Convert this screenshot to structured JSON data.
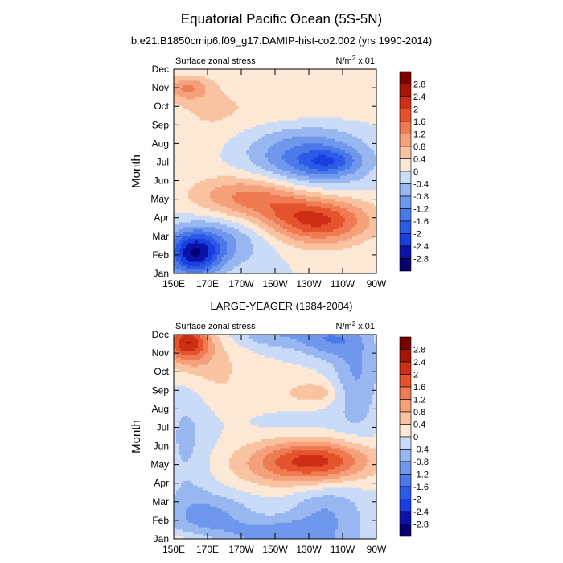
{
  "figure": {
    "title": "Equatorial Pacific Ocean (5S-5N)"
  },
  "chart_data": [
    {
      "type": "heatmap",
      "title": "b.e21.B1850cmip6.f09_g17.DAMIP-hist-co2.002 (yrs 1990-2014)",
      "left_label": "Surface zonal stress",
      "units_label": {
        "base": "N/m",
        "sup": "2",
        "suffix": " x.01"
      },
      "xlabel": "",
      "ylabel": "Month",
      "xlim": [
        150,
        270
      ],
      "x_tick_values": [
        150,
        170,
        190,
        210,
        230,
        250,
        270
      ],
      "x_tick_labels": [
        "150E",
        "170E",
        "170W",
        "150W",
        "130W",
        "110W",
        "90W"
      ],
      "y_tick_labels": [
        "Jan",
        "Feb",
        "Mar",
        "Apr",
        "May",
        "Jun",
        "Jul",
        "Aug",
        "Sep",
        "Oct",
        "Nov",
        "Dec"
      ],
      "features": [
        {
          "lon": 162,
          "month": 1.05,
          "amp": -2.4,
          "sx": 11,
          "sy": 0.85
        },
        {
          "lon": 178,
          "month": 1.6,
          "amp": -0.8,
          "sx": 20,
          "sy": 0.9
        },
        {
          "lon": 195,
          "month": 2.8,
          "amp": -0.5,
          "sx": 20,
          "sy": 0.7
        },
        {
          "lon": 225,
          "month": 3.05,
          "amp": 1.5,
          "sx": 28,
          "sy": 0.8
        },
        {
          "lon": 195,
          "month": 4.2,
          "amp": 1.2,
          "sx": 24,
          "sy": 0.8
        },
        {
          "lon": 238,
          "month": 2.5,
          "amp": 0.9,
          "sx": 20,
          "sy": 0.9
        },
        {
          "lon": 235,
          "month": 6.2,
          "amp": -1.2,
          "sx": 22,
          "sy": 1.2
        },
        {
          "lon": 242,
          "month": 6.0,
          "amp": -0.9,
          "sx": 12,
          "sy": 0.45
        },
        {
          "lon": 212,
          "month": 6.4,
          "amp": -0.4,
          "sx": 20,
          "sy": 1.0
        },
        {
          "lon": 205,
          "month": 8.9,
          "amp": 0.35,
          "sx": 60,
          "sy": 0.9
        },
        {
          "lon": 158,
          "month": 10.0,
          "amp": 1.1,
          "sx": 9,
          "sy": 0.45
        },
        {
          "lon": 172,
          "month": 8.5,
          "amp": 0.2,
          "sx": 12,
          "sy": 2.0
        }
      ],
      "colorbar_labels": [
        "2.8",
        "2.4",
        "2",
        "1.6",
        "1.2",
        "0.8",
        "0.4",
        "0",
        "-0.4",
        "-0.8",
        "-1.2",
        "-1.6",
        "-2",
        "-2.4",
        "-2.8"
      ]
    },
    {
      "type": "heatmap",
      "title": "LARGE-YEAGER (1984-2004)",
      "left_label": "Surface zonal stress",
      "units_label": {
        "base": "N/m",
        "sup": "2",
        "suffix": " x.01"
      },
      "xlabel": "",
      "ylabel": "Month",
      "xlim": [
        150,
        270
      ],
      "x_tick_values": [
        150,
        170,
        190,
        210,
        230,
        250,
        270
      ],
      "x_tick_labels": [
        "150E",
        "170E",
        "170W",
        "150W",
        "130W",
        "110W",
        "90W"
      ],
      "y_tick_labels": [
        "Jan",
        "Feb",
        "Mar",
        "Apr",
        "May",
        "Jun",
        "Jul",
        "Aug",
        "Sep",
        "Oct",
        "Nov",
        "Dec"
      ],
      "features": [
        {
          "lon": 158,
          "month": 10.6,
          "amp": 2.2,
          "sx": 9,
          "sy": 0.75
        },
        {
          "lon": 168,
          "month": 9.5,
          "amp": 0.6,
          "sx": 16,
          "sy": 1.3
        },
        {
          "lon": 238,
          "month": 4.2,
          "amp": 1.6,
          "sx": 22,
          "sy": 0.75
        },
        {
          "lon": 215,
          "month": 4.0,
          "amp": 0.9,
          "sx": 24,
          "sy": 0.9
        },
        {
          "lon": 235,
          "month": 7.9,
          "amp": 0.5,
          "sx": 8,
          "sy": 0.3
        },
        {
          "lon": 220,
          "month": 7.5,
          "amp": 0.4,
          "sx": 30,
          "sy": 1.0
        },
        {
          "lon": 242,
          "month": 10.7,
          "amp": -1.0,
          "sx": 14,
          "sy": 0.7
        },
        {
          "lon": 258,
          "month": 8.5,
          "amp": -0.9,
          "sx": 10,
          "sy": 1.8
        },
        {
          "lon": 208,
          "month": 10.9,
          "amp": -0.6,
          "sx": 16,
          "sy": 0.5
        },
        {
          "lon": 222,
          "month": 6.5,
          "amp": -0.4,
          "sx": 22,
          "sy": 0.6
        },
        {
          "lon": 172,
          "month": 1.2,
          "amp": -0.9,
          "sx": 18,
          "sy": 0.9
        },
        {
          "lon": 212,
          "month": 0.2,
          "amp": -1.0,
          "sx": 20,
          "sy": 0.6
        },
        {
          "lon": 240,
          "month": 1.4,
          "amp": -0.8,
          "sx": 16,
          "sy": 1.1
        },
        {
          "lon": 158,
          "month": 5.5,
          "amp": -0.5,
          "sx": 10,
          "sy": 3.0
        }
      ],
      "colorbar_labels": [
        "2.8",
        "2.4",
        "2",
        "1.6",
        "1.2",
        "0.8",
        "0.4",
        "0",
        "-0.4",
        "-0.8",
        "-1.2",
        "-1.6",
        "-2",
        "-2.4",
        "-2.8"
      ]
    }
  ],
  "colorscale": {
    "levels": [
      -2.8,
      -2.4,
      -2,
      -1.6,
      -1.2,
      -0.8,
      -0.4,
      0,
      0.4,
      0.8,
      1.2,
      1.6,
      2,
      2.4,
      2.8
    ],
    "colors": [
      "#08006e",
      "#0b13a6",
      "#1a3fe0",
      "#2d5be8",
      "#4b7ae8",
      "#6f97ec",
      "#98b6f0",
      "#c9dbf7",
      "#fde8d6",
      "#f9c2a1",
      "#f4a07a",
      "#ef7b52",
      "#e5532e",
      "#cc2f15",
      "#a41505",
      "#7a0000"
    ]
  }
}
